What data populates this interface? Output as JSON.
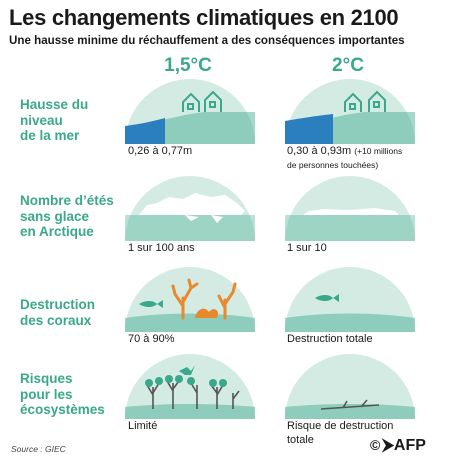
{
  "title": "Les changements climatiques en 2100",
  "subtitle": "Une hausse minime du réchauffement a des conséquences importantes",
  "columns": [
    "1,5°C",
    "2°C"
  ],
  "rows": [
    {
      "category": [
        "Hausse du",
        "niveau",
        "de la mer"
      ],
      "values": [
        "0,26 à 0,77m",
        "0,30 à 0,93m"
      ],
      "note": "(+10 millions",
      "note2": "de personnes touchées)"
    },
    {
      "category": [
        "Nombre d’étés",
        "sans glace",
        "en Arctique"
      ],
      "values": [
        "1 sur 100 ans",
        "1 sur 10"
      ]
    },
    {
      "category": [
        "Destruction",
        "des coraux"
      ],
      "values": [
        "70 à 90%",
        "Destruction totale"
      ]
    },
    {
      "category": [
        "Risques",
        "pour les",
        "écosystèmes"
      ],
      "values": [
        "Limité",
        "Risque de destruction",
        "totale"
      ]
    }
  ],
  "source": "Source : GIEC",
  "logo": "AFP",
  "colors": {
    "accent": "#3aa88a",
    "dome": "#d4ebe4",
    "water": "#2c7fbf"
  }
}
